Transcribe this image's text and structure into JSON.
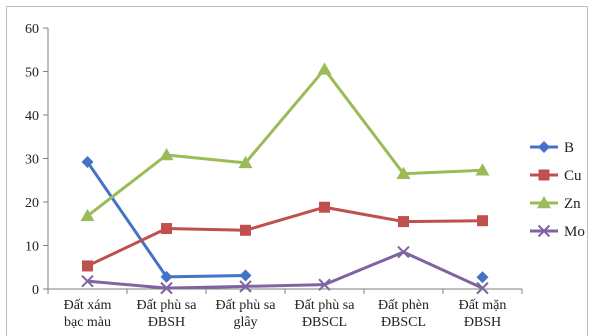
{
  "chart_data": {
    "type": "line",
    "title": "",
    "xlabel": "",
    "ylabel": "",
    "ylim": [
      0,
      60
    ],
    "yticks": [
      "0",
      "10",
      "20",
      "30",
      "40",
      "50",
      "60"
    ],
    "grid": false,
    "legend_position": "right",
    "categories": [
      [
        "Đất xám",
        "bạc màu"
      ],
      [
        "Đất phù sa",
        "ĐBSH"
      ],
      [
        "Đất phù sa",
        "glây"
      ],
      [
        "Đất phù sa",
        "ĐBSCL"
      ],
      [
        "Đất phèn",
        "ĐBSCL"
      ],
      [
        "Đất mặn",
        "ĐBSH"
      ]
    ],
    "series": [
      {
        "name": "B",
        "color": "#4472C4",
        "marker": "diamond",
        "values": [
          29.2,
          2.8,
          3.1,
          null,
          null,
          2.7
        ]
      },
      {
        "name": "Cu",
        "color": "#C0504D",
        "marker": "square",
        "values": [
          5.3,
          13.9,
          13.5,
          18.8,
          15.5,
          15.7
        ]
      },
      {
        "name": "Zn",
        "color": "#9BBB59",
        "marker": "triangle",
        "values": [
          16.8,
          30.8,
          29.0,
          50.5,
          26.5,
          27.3
        ]
      },
      {
        "name": "Mo",
        "color": "#8064A2",
        "marker": "x",
        "values": [
          1.8,
          0.2,
          0.6,
          1.0,
          8.5,
          0.2
        ]
      }
    ]
  }
}
